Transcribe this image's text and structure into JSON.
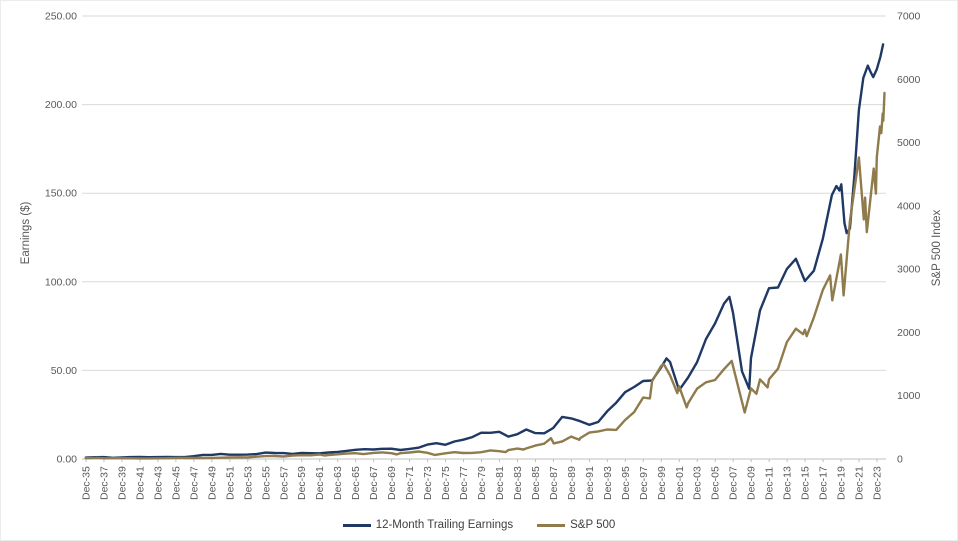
{
  "chart_data": {
    "type": "line",
    "title": "",
    "grid": "horizontal",
    "legend_position": "bottom",
    "style": {
      "gridline_color": "#d9d9d9",
      "axis_line_color": "#bfbfbf",
      "tick_text_color": "#595959",
      "background": "#ffffff"
    },
    "left_axis": {
      "label": "Earnings ($)",
      "min": 0,
      "max": 250,
      "tick_labels": [
        "0.00",
        "50.00",
        "100.00",
        "150.00",
        "200.00",
        "250.00"
      ],
      "tick_values": [
        0,
        50,
        100,
        150,
        200,
        250
      ]
    },
    "right_axis": {
      "label": "S&P 500 Index",
      "min": 0,
      "max": 7000,
      "tick_labels": [
        "0",
        "1000",
        "2000",
        "3000",
        "4000",
        "5000",
        "6000",
        "7000"
      ],
      "tick_values": [
        0,
        1000,
        2000,
        3000,
        4000,
        5000,
        6000,
        7000
      ]
    },
    "x_axis": {
      "domain": [
        1935.92,
        2024.92
      ],
      "tick_first_year": 1935.92,
      "tick_step_years": 2,
      "tick_labels": [
        "Dec-35",
        "Dec-37",
        "Dec-39",
        "Dec-41",
        "Dec-43",
        "Dec-45",
        "Dec-47",
        "Dec-49",
        "Dec-51",
        "Dec-53",
        "Dec-55",
        "Dec-57",
        "Dec-59",
        "Dec-61",
        "Dec-63",
        "Dec-65",
        "Dec-67",
        "Dec-69",
        "Dec-71",
        "Dec-73",
        "Dec-75",
        "Dec-77",
        "Dec-79",
        "Dec-81",
        "Dec-83",
        "Dec-85",
        "Dec-87",
        "Dec-89",
        "Dec-91",
        "Dec-93",
        "Dec-95",
        "Dec-97",
        "Dec-99",
        "Dec-01",
        "Dec-03",
        "Dec-05",
        "Dec-07",
        "Dec-09",
        "Dec-11",
        "Dec-13",
        "Dec-15",
        "Dec-17",
        "Dec-19",
        "Dec-21",
        "Dec-23"
      ]
    },
    "series": [
      {
        "name": "12-Month Trailing Earnings",
        "axis": "left",
        "color": "#1f3864",
        "points": [
          [
            1935.9,
            0.8
          ],
          [
            1936.9,
            1.0
          ],
          [
            1937.9,
            1.1
          ],
          [
            1938.9,
            0.65
          ],
          [
            1939.9,
            0.9
          ],
          [
            1940.9,
            1.05
          ],
          [
            1941.9,
            1.15
          ],
          [
            1942.9,
            1.0
          ],
          [
            1943.9,
            1.1
          ],
          [
            1944.9,
            1.15
          ],
          [
            1945.9,
            1.05
          ],
          [
            1946.9,
            1.05
          ],
          [
            1947.9,
            1.6
          ],
          [
            1948.9,
            2.3
          ],
          [
            1949.9,
            2.3
          ],
          [
            1950.9,
            2.85
          ],
          [
            1951.9,
            2.45
          ],
          [
            1952.9,
            2.4
          ],
          [
            1953.9,
            2.5
          ],
          [
            1954.9,
            2.75
          ],
          [
            1955.9,
            3.6
          ],
          [
            1956.9,
            3.4
          ],
          [
            1957.9,
            3.35
          ],
          [
            1958.9,
            2.9
          ],
          [
            1959.9,
            3.4
          ],
          [
            1960.9,
            3.25
          ],
          [
            1961.9,
            3.2
          ],
          [
            1962.9,
            3.65
          ],
          [
            1963.9,
            4.0
          ],
          [
            1964.9,
            4.55
          ],
          [
            1965.9,
            5.2
          ],
          [
            1966.9,
            5.55
          ],
          [
            1967.9,
            5.35
          ],
          [
            1968.9,
            5.75
          ],
          [
            1969.9,
            5.8
          ],
          [
            1970.9,
            5.1
          ],
          [
            1971.9,
            5.7
          ],
          [
            1972.9,
            6.4
          ],
          [
            1973.9,
            8.15
          ],
          [
            1974.9,
            8.9
          ],
          [
            1975.9,
            8.0
          ],
          [
            1976.9,
            9.9
          ],
          [
            1977.9,
            10.9
          ],
          [
            1978.9,
            12.35
          ],
          [
            1979.9,
            14.85
          ],
          [
            1980.9,
            14.8
          ],
          [
            1981.9,
            15.35
          ],
          [
            1982.9,
            12.65
          ],
          [
            1983.9,
            14.0
          ],
          [
            1984.9,
            16.65
          ],
          [
            1985.9,
            14.6
          ],
          [
            1986.9,
            14.5
          ],
          [
            1987.9,
            17.5
          ],
          [
            1988.9,
            23.75
          ],
          [
            1989.9,
            22.9
          ],
          [
            1990.9,
            21.35
          ],
          [
            1991.9,
            19.3
          ],
          [
            1992.9,
            20.9
          ],
          [
            1993.9,
            26.9
          ],
          [
            1994.9,
            31.75
          ],
          [
            1995.9,
            37.7
          ],
          [
            1996.9,
            40.65
          ],
          [
            1997.9,
            44.0
          ],
          [
            1998.9,
            44.3
          ],
          [
            1999.9,
            51.7
          ],
          [
            2000.5,
            56.8
          ],
          [
            2000.9,
            54.7
          ],
          [
            2001.9,
            38.85
          ],
          [
            2002.9,
            46.0
          ],
          [
            2003.9,
            54.7
          ],
          [
            2004.9,
            67.7
          ],
          [
            2005.9,
            76.45
          ],
          [
            2006.9,
            87.7
          ],
          [
            2007.5,
            91.5
          ],
          [
            2007.9,
            82.55
          ],
          [
            2008.9,
            49.5
          ],
          [
            2009.7,
            39.6
          ],
          [
            2009.9,
            57.0
          ],
          [
            2010.9,
            83.8
          ],
          [
            2011.9,
            96.4
          ],
          [
            2012.9,
            96.8
          ],
          [
            2013.9,
            107.3
          ],
          [
            2014.9,
            113.0
          ],
          [
            2015.9,
            100.45
          ],
          [
            2016.9,
            106.25
          ],
          [
            2017.9,
            124.5
          ],
          [
            2018.9,
            149.0
          ],
          [
            2019.4,
            154.0
          ],
          [
            2019.75,
            151.5
          ],
          [
            2019.95,
            155.0
          ],
          [
            2020.3,
            133.0
          ],
          [
            2020.55,
            127.5
          ],
          [
            2020.9,
            130.0
          ],
          [
            2021.4,
            160.0
          ],
          [
            2021.9,
            197.0
          ],
          [
            2022.4,
            215.0
          ],
          [
            2022.9,
            222.0
          ],
          [
            2023.2,
            218.5
          ],
          [
            2023.5,
            215.5
          ],
          [
            2023.9,
            220.0
          ],
          [
            2024.3,
            227.0
          ],
          [
            2024.6,
            234.0
          ]
        ]
      },
      {
        "name": "S&P 500",
        "axis": "right",
        "color": "#8f7b4c",
        "points": [
          [
            1935.9,
            13.4
          ],
          [
            1936.9,
            17.2
          ],
          [
            1937.15,
            18.6
          ],
          [
            1937.9,
            10.55
          ],
          [
            1938.9,
            13.2
          ],
          [
            1939.9,
            12.5
          ],
          [
            1940.9,
            10.6
          ],
          [
            1941.9,
            8.7
          ],
          [
            1942.9,
            9.8
          ],
          [
            1943.9,
            11.7
          ],
          [
            1944.9,
            13.3
          ],
          [
            1945.9,
            17.4
          ],
          [
            1946.4,
            19.3
          ],
          [
            1946.9,
            15.3
          ],
          [
            1947.9,
            15.2
          ],
          [
            1948.9,
            15.2
          ],
          [
            1949.9,
            16.8
          ],
          [
            1950.9,
            20.4
          ],
          [
            1951.9,
            23.8
          ],
          [
            1952.9,
            26.6
          ],
          [
            1953.9,
            24.8
          ],
          [
            1954.9,
            36.0
          ],
          [
            1955.9,
            45.5
          ],
          [
            1956.9,
            46.7
          ],
          [
            1957.9,
            40.0
          ],
          [
            1958.9,
            55.2
          ],
          [
            1959.9,
            59.9
          ],
          [
            1960.9,
            58.1
          ],
          [
            1961.9,
            71.6
          ],
          [
            1962.45,
            54.8
          ],
          [
            1962.9,
            63.1
          ],
          [
            1963.9,
            75.0
          ],
          [
            1964.9,
            84.8
          ],
          [
            1965.9,
            92.4
          ],
          [
            1966.75,
            77.1
          ],
          [
            1966.9,
            80.3
          ],
          [
            1967.9,
            96.5
          ],
          [
            1968.9,
            103.9
          ],
          [
            1969.9,
            92.1
          ],
          [
            1970.5,
            72.7
          ],
          [
            1970.9,
            92.2
          ],
          [
            1971.9,
            102.1
          ],
          [
            1972.9,
            118.1
          ],
          [
            1973.9,
            97.6
          ],
          [
            1974.75,
            63.5
          ],
          [
            1974.9,
            68.6
          ],
          [
            1975.9,
            90.2
          ],
          [
            1976.9,
            107.5
          ],
          [
            1977.9,
            95.1
          ],
          [
            1978.9,
            96.1
          ],
          [
            1979.9,
            107.9
          ],
          [
            1980.9,
            135.8
          ],
          [
            1981.9,
            122.6
          ],
          [
            1982.6,
            109.6
          ],
          [
            1982.9,
            140.6
          ],
          [
            1983.9,
            164.9
          ],
          [
            1984.6,
            150.6
          ],
          [
            1984.9,
            167.2
          ],
          [
            1985.9,
            211.3
          ],
          [
            1986.9,
            242.2
          ],
          [
            1987.65,
            329.4
          ],
          [
            1987.95,
            247.1
          ],
          [
            1988.9,
            277.7
          ],
          [
            1989.9,
            353.4
          ],
          [
            1990.8,
            304.0
          ],
          [
            1990.9,
            330.2
          ],
          [
            1991.9,
            417.1
          ],
          [
            1992.9,
            435.7
          ],
          [
            1993.9,
            466.4
          ],
          [
            1994.9,
            459.3
          ],
          [
            1995.9,
            615.9
          ],
          [
            1996.9,
            740.7
          ],
          [
            1997.9,
            970.4
          ],
          [
            1998.65,
            957.3
          ],
          [
            1998.9,
            1229.2
          ],
          [
            1999.9,
            1469.3
          ],
          [
            2000.2,
            1498.6
          ],
          [
            2000.9,
            1320.3
          ],
          [
            2001.7,
            1040.9
          ],
          [
            2001.9,
            1148.1
          ],
          [
            2002.75,
            815.3
          ],
          [
            2002.9,
            879.8
          ],
          [
            2003.9,
            1111.9
          ],
          [
            2004.9,
            1211.9
          ],
          [
            2005.9,
            1248.3
          ],
          [
            2006.9,
            1418.3
          ],
          [
            2007.75,
            1549.4
          ],
          [
            2007.9,
            1468.4
          ],
          [
            2008.9,
            903.3
          ],
          [
            2009.2,
            735.1
          ],
          [
            2009.9,
            1115.1
          ],
          [
            2010.5,
            1030.7
          ],
          [
            2010.9,
            1257.6
          ],
          [
            2011.75,
            1131.4
          ],
          [
            2011.9,
            1257.6
          ],
          [
            2012.9,
            1426.2
          ],
          [
            2013.9,
            1848.4
          ],
          [
            2014.9,
            2058.9
          ],
          [
            2015.7,
            1972.2
          ],
          [
            2015.9,
            2043.9
          ],
          [
            2016.1,
            1940.2
          ],
          [
            2016.9,
            2238.8
          ],
          [
            2017.9,
            2673.6
          ],
          [
            2018.7,
            2901.5
          ],
          [
            2018.95,
            2506.9
          ],
          [
            2019.9,
            3230.8
          ],
          [
            2020.2,
            2584.6
          ],
          [
            2020.9,
            3756.1
          ],
          [
            2021.9,
            4766.2
          ],
          [
            2022.45,
            3785.4
          ],
          [
            2022.6,
            4130.3
          ],
          [
            2022.78,
            3585.6
          ],
          [
            2023.55,
            4588.9
          ],
          [
            2023.8,
            4193.8
          ],
          [
            2023.9,
            4769.8
          ],
          [
            2024.25,
            5254.4
          ],
          [
            2024.4,
            5150.0
          ],
          [
            2024.55,
            5460.5
          ],
          [
            2024.62,
            5346.0
          ],
          [
            2024.75,
            5785.0
          ]
        ]
      }
    ]
  }
}
